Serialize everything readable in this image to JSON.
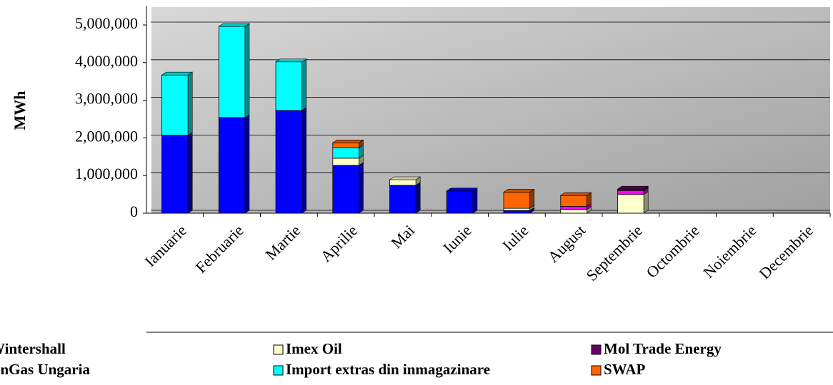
{
  "chart_data": {
    "type": "stacked_bar_3d",
    "y_axis_label": "MWh",
    "categories": [
      "Ianuarie",
      "Februarie",
      "Martie",
      "Aprilie",
      "Mai",
      "Iunie",
      "Iulie",
      "August",
      "Septembrie",
      "Octombrie",
      "Noiembrie",
      "Decembrie"
    ],
    "series": [
      {
        "name": "Wintershall",
        "color": "#0000ff",
        "values": [
          2070000,
          2540000,
          2730000,
          1270000,
          740000,
          590000,
          70000,
          0,
          0,
          0,
          0,
          0
        ]
      },
      {
        "name": "Imex Oil",
        "color": "#ffffcc",
        "values": [
          0,
          0,
          0,
          190000,
          150000,
          0,
          60000,
          100000,
          500000,
          0,
          0,
          0
        ]
      },
      {
        "name": "EonGas Ungaria",
        "color": "#ff00ff",
        "values": [
          0,
          0,
          0,
          0,
          0,
          0,
          0,
          80000,
          100000,
          0,
          0,
          0
        ]
      },
      {
        "name": "Mol Trade Energy",
        "color": "#660066",
        "values": [
          0,
          0,
          0,
          0,
          0,
          0,
          0,
          0,
          40000,
          0,
          0,
          0
        ]
      },
      {
        "name": "Import extras din inmagazinare",
        "color": "#00ffff",
        "values": [
          1600000,
          2420000,
          1290000,
          280000,
          0,
          0,
          0,
          0,
          0,
          0,
          0,
          0
        ]
      },
      {
        "name": "SWAP",
        "color": "#ff6600",
        "values": [
          0,
          0,
          0,
          130000,
          0,
          0,
          430000,
          290000,
          0,
          0,
          0,
          0
        ]
      }
    ],
    "ylim": [
      0,
      5500000
    ],
    "yticks": [
      0,
      {
        "value": 1000000,
        "label": "1,000,000"
      },
      {
        "value": 2000000,
        "label": "2,000,000"
      },
      {
        "value": 3000000,
        "label": "3,000,000"
      },
      {
        "value": 4000000,
        "label": "4,000,000"
      },
      {
        "value": 5000000,
        "label": "5,000,000"
      }
    ],
    "grid": true
  }
}
